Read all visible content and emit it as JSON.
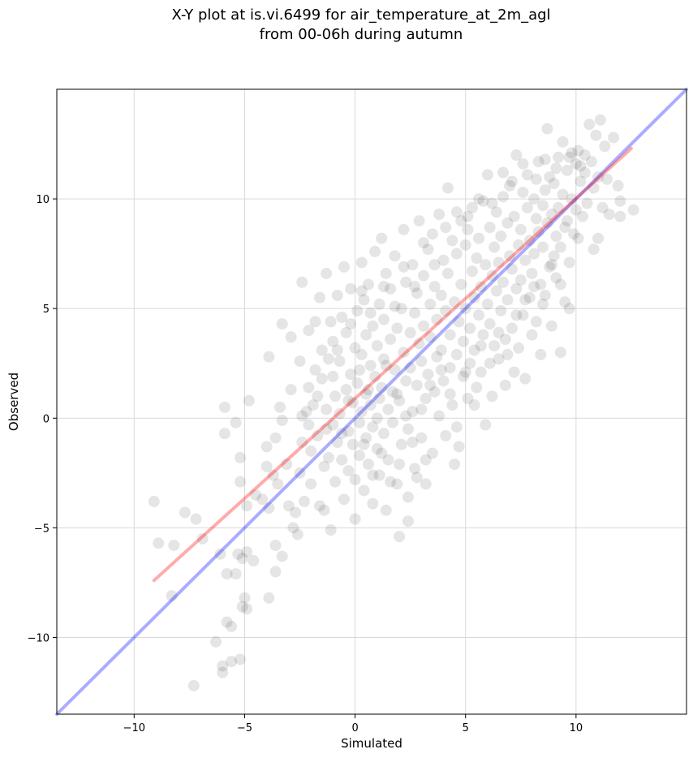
{
  "chart_data": {
    "type": "scatter",
    "title_lines": [
      "X-Y plot at is.vi.6499 for air_temperature_at_2m_agl",
      "from 00-06h during autumn"
    ],
    "xlabel": "Simulated",
    "ylabel": "Observed",
    "xlim": [
      -13.5,
      15
    ],
    "ylim": [
      -13.5,
      15
    ],
    "xticks": [
      -10,
      -5,
      0,
      5,
      10
    ],
    "yticks": [
      -10,
      -5,
      0,
      5,
      10
    ],
    "xtick_labels": [
      "−10",
      "−5",
      "0",
      "5",
      "10"
    ],
    "ytick_labels": [
      "−10",
      "−5",
      "0",
      "5",
      "10"
    ],
    "grid": true,
    "colors": {
      "points": "#000000",
      "identity_line": "#0000ff",
      "fit_line": "#ff0000",
      "grid": "#d9d9d9"
    },
    "lines": [
      {
        "role": "identity",
        "color": "#0000ff",
        "x": [
          -13.5,
          15
        ],
        "y": [
          -13.5,
          15
        ]
      },
      {
        "role": "fit",
        "color": "#ff0000",
        "x": [
          -9.1,
          12.5
        ],
        "y": [
          -7.4,
          12.3
        ]
      }
    ],
    "points": [
      [
        -9.1,
        -3.8
      ],
      [
        -8.9,
        -5.7
      ],
      [
        -8.2,
        -5.8
      ],
      [
        -8.3,
        -8.1
      ],
      [
        -7.7,
        -4.3
      ],
      [
        -7.2,
        -4.6
      ],
      [
        -7.3,
        -12.2
      ],
      [
        -6.9,
        -5.5
      ],
      [
        -6.3,
        -10.2
      ],
      [
        -6.1,
        -6.2
      ],
      [
        -6.0,
        -11.3
      ],
      [
        -6.0,
        -11.6
      ],
      [
        -5.8,
        -7.1
      ],
      [
        -5.8,
        -9.3
      ],
      [
        -5.6,
        -9.5
      ],
      [
        -5.6,
        -11.1
      ],
      [
        -5.4,
        -7.1
      ],
      [
        -5.2,
        -11.0
      ],
      [
        -5.1,
        -8.6
      ],
      [
        -5.0,
        -8.2
      ],
      [
        -4.9,
        -8.7
      ],
      [
        -5.3,
        -6.2
      ],
      [
        -5.1,
        -6.4
      ],
      [
        -4.9,
        -6.1
      ],
      [
        -4.6,
        -6.5
      ],
      [
        -5.9,
        0.5
      ],
      [
        -5.9,
        -0.7
      ],
      [
        -5.4,
        -0.2
      ],
      [
        -5.2,
        -1.8
      ],
      [
        -5.2,
        -2.9
      ],
      [
        -4.8,
        0.8
      ],
      [
        -4.9,
        -4.0
      ],
      [
        -4.5,
        -3.5
      ],
      [
        -4.2,
        -3.7
      ],
      [
        -4.0,
        -2.2
      ],
      [
        -3.9,
        -4.1
      ],
      [
        -3.9,
        -8.2
      ],
      [
        -3.7,
        -2.6
      ],
      [
        -3.6,
        -5.8
      ],
      [
        -3.6,
        -7.0
      ],
      [
        -3.3,
        -6.3
      ],
      [
        -4.0,
        -1.3
      ],
      [
        -3.9,
        2.8
      ],
      [
        -3.6,
        -0.9
      ],
      [
        -3.5,
        -3.0
      ],
      [
        -3.4,
        0.5
      ],
      [
        -3.3,
        -0.1
      ],
      [
        -3.3,
        4.3
      ],
      [
        -3.1,
        -2.1
      ],
      [
        -3.0,
        -4.0
      ],
      [
        -2.9,
        1.3
      ],
      [
        -2.9,
        3.7
      ],
      [
        -2.8,
        -5.0
      ],
      [
        -2.7,
        -4.3
      ],
      [
        -2.6,
        -5.3
      ],
      [
        -2.5,
        -2.5
      ],
      [
        -2.5,
        2.6
      ],
      [
        -2.4,
        -1.1
      ],
      [
        -2.4,
        0.1
      ],
      [
        -2.4,
        6.2
      ],
      [
        -2.3,
        -3.8
      ],
      [
        -2.2,
        0.3
      ],
      [
        -2.1,
        1.4
      ],
      [
        -2.1,
        4.0
      ],
      [
        -2.0,
        -1.5
      ],
      [
        -2.0,
        -3.0
      ],
      [
        -1.9,
        0.6
      ],
      [
        -1.8,
        4.4
      ],
      [
        -1.8,
        2.2
      ],
      [
        -1.7,
        -0.8
      ],
      [
        -1.6,
        -4.0
      ],
      [
        -1.6,
        5.5
      ],
      [
        -1.5,
        1.8
      ],
      [
        -1.5,
        3.1
      ],
      [
        -1.4,
        -2.2
      ],
      [
        -1.4,
        -4.2
      ],
      [
        -1.3,
        0.4
      ],
      [
        -1.3,
        6.6
      ],
      [
        -1.2,
        -1.8
      ],
      [
        -1.2,
        2.7
      ],
      [
        -1.1,
        -5.1
      ],
      [
        -1.1,
        4.4
      ],
      [
        -1.0,
        -0.3
      ],
      [
        -1.0,
        3.5
      ],
      [
        -0.9,
        -2.9
      ],
      [
        -0.9,
        1.0
      ],
      [
        -0.8,
        5.6
      ],
      [
        -0.8,
        -1.1
      ],
      [
        -0.7,
        0.2
      ],
      [
        -0.7,
        2.6
      ],
      [
        -0.6,
        -1.9
      ],
      [
        -0.6,
        4.6
      ],
      [
        -0.5,
        6.9
      ],
      [
        -0.5,
        -3.7
      ],
      [
        -0.4,
        1.3
      ],
      [
        -0.4,
        3.9
      ],
      [
        -0.3,
        -0.6
      ],
      [
        -0.3,
        -2.4
      ],
      [
        -0.2,
        5.9
      ],
      [
        -0.2,
        2.0
      ],
      [
        -0.1,
        -1.2
      ],
      [
        -0.1,
        0.7
      ],
      [
        0.0,
        3.2
      ],
      [
        0.0,
        -2.8
      ],
      [
        0.0,
        -4.6
      ],
      [
        0.1,
        4.9
      ],
      [
        0.1,
        1.6
      ],
      [
        0.2,
        -0.2
      ],
      [
        0.2,
        -1.7
      ],
      [
        0.3,
        7.1
      ],
      [
        0.3,
        2.9
      ],
      [
        0.3,
        0.3
      ],
      [
        0.4,
        -3.3
      ],
      [
        0.4,
        5.4
      ],
      [
        0.5,
        1.1
      ],
      [
        0.5,
        -0.9
      ],
      [
        0.5,
        3.8
      ],
      [
        0.6,
        -2.1
      ],
      [
        0.6,
        6.1
      ],
      [
        0.7,
        0.6
      ],
      [
        0.7,
        2.4
      ],
      [
        0.8,
        -0.4
      ],
      [
        0.8,
        4.2
      ],
      [
        0.8,
        -3.9
      ],
      [
        0.9,
        1.9
      ],
      [
        0.9,
        7.6
      ],
      [
        1.0,
        0.0
      ],
      [
        1.0,
        3.3
      ],
      [
        1.0,
        -1.4
      ],
      [
        1.1,
        5.2
      ],
      [
        1.1,
        -2.6
      ],
      [
        1.2,
        1.4
      ],
      [
        1.2,
        8.2
      ],
      [
        1.3,
        -0.7
      ],
      [
        1.3,
        4.5
      ],
      [
        1.3,
        2.7
      ],
      [
        1.4,
        6.6
      ],
      [
        1.4,
        -4.2
      ],
      [
        1.5,
        0.4
      ],
      [
        1.5,
        -1.9
      ],
      [
        1.6,
        3.6
      ],
      [
        1.6,
        5.9
      ],
      [
        1.7,
        1.2
      ],
      [
        1.7,
        -0.2
      ],
      [
        1.8,
        2.2
      ],
      [
        1.8,
        7.4
      ],
      [
        1.9,
        -3.0
      ],
      [
        1.9,
        4.1
      ],
      [
        2.0,
        0.8
      ],
      [
        2.0,
        -5.4
      ],
      [
        2.1,
        5.0
      ],
      [
        2.1,
        -1.2
      ],
      [
        2.2,
        3.0
      ],
      [
        2.2,
        8.6
      ],
      [
        2.3,
        1.7
      ],
      [
        2.3,
        6.2
      ],
      [
        2.4,
        -0.5
      ],
      [
        2.4,
        -3.6
      ],
      [
        2.5,
        3.9
      ],
      [
        2.5,
        2.3
      ],
      [
        2.6,
        7.0
      ],
      [
        2.6,
        0.3
      ],
      [
        2.7,
        4.8
      ],
      [
        2.7,
        -2.3
      ],
      [
        2.8,
        1.5
      ],
      [
        2.8,
        5.7
      ],
      [
        2.9,
        3.4
      ],
      [
        2.9,
        9.0
      ],
      [
        3.0,
        -0.9
      ],
      [
        3.0,
        2.6
      ],
      [
        3.1,
        6.5
      ],
      [
        3.1,
        4.2
      ],
      [
        3.2,
        0.9
      ],
      [
        3.2,
        -3.0
      ],
      [
        3.3,
        7.7
      ],
      [
        3.3,
        2.0
      ],
      [
        3.4,
        5.2
      ],
      [
        3.4,
        3.7
      ],
      [
        3.5,
        -1.6
      ],
      [
        3.5,
        8.4
      ],
      [
        3.6,
        1.2
      ],
      [
        3.6,
        6.0
      ],
      [
        3.7,
        4.5
      ],
      [
        3.7,
        2.8
      ],
      [
        3.8,
        0.1
      ],
      [
        3.8,
        9.3
      ],
      [
        3.9,
        5.6
      ],
      [
        3.9,
        3.1
      ],
      [
        4.0,
        7.2
      ],
      [
        4.0,
        1.7
      ],
      [
        4.1,
        -0.8
      ],
      [
        4.1,
        4.9
      ],
      [
        4.2,
        10.5
      ],
      [
        4.2,
        6.6
      ],
      [
        4.3,
        2.3
      ],
      [
        4.3,
        3.8
      ],
      [
        4.4,
        8.1
      ],
      [
        4.4,
        0.6
      ],
      [
        4.5,
        5.3
      ],
      [
        4.5,
        -2.1
      ],
      [
        4.6,
        7.5
      ],
      [
        4.6,
        2.9
      ],
      [
        4.7,
        4.4
      ],
      [
        4.7,
        -1.3
      ],
      [
        4.8,
        9.0
      ],
      [
        4.8,
        6.1
      ],
      [
        4.9,
        1.9
      ],
      [
        4.9,
        3.5
      ],
      [
        5.0,
        7.9
      ],
      [
        5.0,
        5.0
      ],
      [
        5.1,
        0.9
      ],
      [
        5.1,
        8.6
      ],
      [
        5.2,
        4.1
      ],
      [
        5.2,
        2.5
      ],
      [
        5.3,
        6.7
      ],
      [
        5.3,
        9.6
      ],
      [
        5.4,
        5.5
      ],
      [
        5.4,
        3.1
      ],
      [
        5.5,
        7.3
      ],
      [
        5.5,
        1.4
      ],
      [
        5.6,
        4.7
      ],
      [
        5.6,
        8.2
      ],
      [
        5.7,
        6.0
      ],
      [
        5.7,
        2.1
      ],
      [
        5.8,
        9.9
      ],
      [
        5.8,
        3.8
      ],
      [
        5.9,
        7.0
      ],
      [
        5.9,
        -0.3
      ],
      [
        6.0,
        5.2
      ],
      [
        6.0,
        11.1
      ],
      [
        6.1,
        8.7
      ],
      [
        6.1,
        4.3
      ],
      [
        6.2,
        6.5
      ],
      [
        6.2,
        1.0
      ],
      [
        6.3,
        7.8
      ],
      [
        6.3,
        3.3
      ],
      [
        6.4,
        9.4
      ],
      [
        6.4,
        5.8
      ],
      [
        6.5,
        2.7
      ],
      [
        6.5,
        7.1
      ],
      [
        6.6,
        8.3
      ],
      [
        6.6,
        4.9
      ],
      [
        6.7,
        10.1
      ],
      [
        6.7,
        6.2
      ],
      [
        6.8,
        3.6
      ],
      [
        6.8,
        1.5
      ],
      [
        6.9,
        8.9
      ],
      [
        6.9,
        5.4
      ],
      [
        7.0,
        7.4
      ],
      [
        7.0,
        10.6
      ],
      [
        7.1,
        4.1
      ],
      [
        7.1,
        6.8
      ],
      [
        7.2,
        2.1
      ],
      [
        7.2,
        9.2
      ],
      [
        7.3,
        5.9
      ],
      [
        7.3,
        12.0
      ],
      [
        7.4,
        7.9
      ],
      [
        7.4,
        3.2
      ],
      [
        7.5,
        8.6
      ],
      [
        7.5,
        6.3
      ],
      [
        7.6,
        10.3
      ],
      [
        7.6,
        4.7
      ],
      [
        7.7,
        7.2
      ],
      [
        7.7,
        1.8
      ],
      [
        7.8,
        9.6
      ],
      [
        7.8,
        11.1
      ],
      [
        7.9,
        5.5
      ],
      [
        7.9,
        8.1
      ],
      [
        8.0,
        6.6
      ],
      [
        8.0,
        3.8
      ],
      [
        8.1,
        10.0
      ],
      [
        8.1,
        7.5
      ],
      [
        8.2,
        9.1
      ],
      [
        8.2,
        4.4
      ],
      [
        8.3,
        8.5
      ],
      [
        8.3,
        11.7
      ],
      [
        8.4,
        6.1
      ],
      [
        8.4,
        2.9
      ],
      [
        8.5,
        9.7
      ],
      [
        8.5,
        7.8
      ],
      [
        8.6,
        10.4
      ],
      [
        8.6,
        5.6
      ],
      [
        8.7,
        13.2
      ],
      [
        8.7,
        8.9
      ],
      [
        8.8,
        6.9
      ],
      [
        8.8,
        11.0
      ],
      [
        8.9,
        9.3
      ],
      [
        8.9,
        4.2
      ],
      [
        9.0,
        7.4
      ],
      [
        9.0,
        10.7
      ],
      [
        9.1,
        8.3
      ],
      [
        9.1,
        6.4
      ],
      [
        9.2,
        11.9
      ],
      [
        9.2,
        9.6
      ],
      [
        9.3,
        3.0
      ],
      [
        9.3,
        7.8
      ],
      [
        9.4,
        10.2
      ],
      [
        9.4,
        12.6
      ],
      [
        9.5,
        8.7
      ],
      [
        9.5,
        5.3
      ],
      [
        9.6,
        11.3
      ],
      [
        9.6,
        9.0
      ],
      [
        9.7,
        7.1
      ],
      [
        9.7,
        5.0
      ],
      [
        9.8,
        12.1
      ],
      [
        9.8,
        10.0
      ],
      [
        9.9,
        8.4
      ],
      [
        10.0,
        11.6
      ],
      [
        10.0,
        9.5
      ],
      [
        10.1,
        8.2
      ],
      [
        10.1,
        12.2
      ],
      [
        10.2,
        10.8
      ],
      [
        10.3,
        9.2
      ],
      [
        10.4,
        12.0
      ],
      [
        10.4,
        11.2
      ],
      [
        10.5,
        9.8
      ],
      [
        10.6,
        13.4
      ],
      [
        10.7,
        11.7
      ],
      [
        10.8,
        10.5
      ],
      [
        10.8,
        7.7
      ],
      [
        10.9,
        12.9
      ],
      [
        11.0,
        8.2
      ],
      [
        11.0,
        11.0
      ],
      [
        11.1,
        13.6
      ],
      [
        11.2,
        9.6
      ],
      [
        11.3,
        12.4
      ],
      [
        11.4,
        10.9
      ],
      [
        11.5,
        9.3
      ],
      [
        11.7,
        12.8
      ],
      [
        11.9,
        10.6
      ],
      [
        12.0,
        9.9
      ],
      [
        12.0,
        9.2
      ],
      [
        12.6,
        9.5
      ],
      [
        0.2,
        2.2
      ],
      [
        0.6,
        1.3
      ],
      [
        1.1,
        0.9
      ],
      [
        1.4,
        2.4
      ],
      [
        1.9,
        1.1
      ],
      [
        2.3,
        0.1
      ],
      [
        2.6,
        -1.1
      ],
      [
        3.0,
        0.4
      ],
      [
        3.4,
        1.5
      ],
      [
        3.9,
        2.2
      ],
      [
        4.3,
        1.1
      ],
      [
        4.6,
        -0.4
      ],
      [
        5.0,
        2.1
      ],
      [
        5.4,
        0.6
      ],
      [
        5.7,
        3.3
      ],
      [
        6.1,
        2.5
      ],
      [
        6.5,
        3.9
      ],
      [
        6.9,
        2.9
      ],
      [
        7.3,
        4.7
      ],
      [
        7.7,
        5.4
      ],
      [
        8.1,
        6.0
      ],
      [
        8.5,
        5.2
      ],
      [
        8.9,
        7.0
      ],
      [
        9.3,
        6.1
      ],
      [
        0.4,
        -1.2
      ],
      [
        0.8,
        -2.6
      ],
      [
        1.2,
        -1.6
      ],
      [
        1.6,
        -2.9
      ],
      [
        2.0,
        -2.1
      ],
      [
        2.4,
        -4.7
      ],
      [
        2.8,
        -2.7
      ],
      [
        3.2,
        -1.9
      ],
      [
        -0.3,
        0.8
      ],
      [
        -0.6,
        -0.7
      ],
      [
        -1.0,
        1.9
      ],
      [
        -1.3,
        -0.5
      ],
      [
        -1.7,
        1.0
      ],
      [
        -2.1,
        -0.3
      ],
      [
        -0.8,
        3.1
      ],
      [
        -0.2,
        4.3
      ],
      [
        0.3,
        5.8
      ],
      [
        0.7,
        4.8
      ],
      [
        1.3,
        6.0
      ],
      [
        1.8,
        5.1
      ],
      [
        2.2,
        6.9
      ],
      [
        2.7,
        6.0
      ],
      [
        3.1,
        8.0
      ],
      [
        3.6,
        7.0
      ],
      [
        4.1,
        8.7
      ],
      [
        4.6,
        9.4
      ],
      [
        5.1,
        9.2
      ],
      [
        5.6,
        10.0
      ],
      [
        6.2,
        9.8
      ],
      [
        6.7,
        11.2
      ],
      [
        7.1,
        10.8
      ],
      [
        7.6,
        11.6
      ],
      [
        8.2,
        10.9
      ],
      [
        8.6,
        11.8
      ],
      [
        9.1,
        11.4
      ],
      [
        9.7,
        11.9
      ],
      [
        10.2,
        11.5
      ]
    ]
  }
}
